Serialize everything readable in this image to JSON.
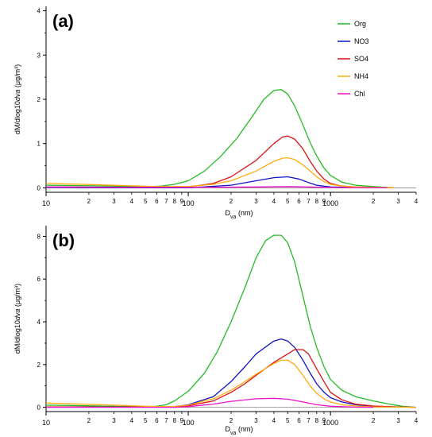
{
  "chart_data": [
    {
      "type": "line",
      "panel_label": "(a)",
      "xlabel": "D",
      "xlabel_sub": "va",
      "xlabel_unit": " (nm)",
      "ylabel_prefix": "dM/dlog10",
      "ylabel_var": "dva",
      "ylabel_unit": " (μg/m³)",
      "x_scale": "log",
      "xlim": [
        10,
        4000
      ],
      "ylim": [
        -0.1,
        4.1
      ],
      "y_ticks": [
        0,
        1,
        2,
        3,
        4
      ],
      "x_major_ticks": [
        10,
        100,
        1000
      ],
      "x_major_labels": [
        "10",
        "100",
        "1000"
      ],
      "x_minor_ticks": [
        20,
        30,
        40,
        50,
        60,
        70,
        80,
        90,
        200,
        300,
        400,
        500,
        600,
        700,
        800,
        900,
        2000,
        3000,
        4000
      ],
      "x_minor_labels": [
        "2",
        "3",
        "4",
        "5",
        "6",
        "7",
        "8",
        "9",
        "2",
        "3",
        "4",
        "5",
        "6",
        "7",
        "8",
        "9",
        "2",
        "3",
        "4"
      ],
      "legend_position": "top-right",
      "series": [
        {
          "name": "Org",
          "color": "#22bb22",
          "x": [
            10,
            30,
            50,
            65,
            80,
            100,
            130,
            170,
            220,
            280,
            340,
            400,
            450,
            500,
            560,
            640,
            720,
            800,
            900,
            1000,
            1200,
            1500,
            1800,
            2200,
            2800
          ],
          "y": [
            0.06,
            0.04,
            0.02,
            0.04,
            0.08,
            0.16,
            0.38,
            0.72,
            1.12,
            1.6,
            2.0,
            2.2,
            2.22,
            2.12,
            1.85,
            1.42,
            1.02,
            0.72,
            0.45,
            0.28,
            0.13,
            0.06,
            0.04,
            0.02,
            0.0
          ]
        },
        {
          "name": "NO3",
          "color": "#1111cc",
          "x": [
            10,
            50,
            100,
            200,
            300,
            400,
            500,
            600,
            700,
            800,
            1000,
            1500,
            2500
          ],
          "y": [
            0.01,
            0.0,
            0.0,
            0.06,
            0.16,
            0.23,
            0.25,
            0.2,
            0.12,
            0.06,
            0.02,
            0.01,
            0.0
          ]
        },
        {
          "name": "SO4",
          "color": "#dd1111",
          "x": [
            10,
            50,
            100,
            150,
            200,
            300,
            400,
            460,
            500,
            560,
            640,
            720,
            800,
            900,
            1000,
            1200,
            1500,
            2000,
            2800
          ],
          "y": [
            0.02,
            0.01,
            0.02,
            0.1,
            0.25,
            0.62,
            1.0,
            1.15,
            1.17,
            1.1,
            0.88,
            0.6,
            0.38,
            0.2,
            0.1,
            0.04,
            0.02,
            0.01,
            0.0
          ]
        },
        {
          "name": "NH4",
          "color": "#ffaa11",
          "x": [
            10,
            30,
            60,
            100,
            150,
            200,
            300,
            400,
            460,
            500,
            560,
            640,
            720,
            800,
            900,
            1000,
            1200,
            1500,
            2000,
            2800
          ],
          "y": [
            0.1,
            0.06,
            0.03,
            0.03,
            0.08,
            0.16,
            0.38,
            0.6,
            0.67,
            0.68,
            0.64,
            0.52,
            0.38,
            0.25,
            0.14,
            0.08,
            0.04,
            0.02,
            0.01,
            0.0
          ]
        },
        {
          "name": "Chl",
          "color": "#ee11cc",
          "x": [
            10,
            100,
            300,
            500,
            700,
            1000,
            1500,
            2500
          ],
          "y": [
            0.02,
            0.01,
            0.02,
            0.03,
            0.02,
            0.01,
            0.0,
            0.0
          ]
        }
      ]
    },
    {
      "type": "line",
      "panel_label": "(b)",
      "xlabel": "D",
      "xlabel_sub": "va",
      "xlabel_unit": " (nm)",
      "ylabel_prefix": "dM/dlog10",
      "ylabel_var": "dva",
      "ylabel_unit": " (μg/m³)",
      "x_scale": "log",
      "xlim": [
        10,
        4000
      ],
      "ylim": [
        -0.2,
        8.5
      ],
      "y_ticks": [
        0,
        2,
        4,
        6,
        8
      ],
      "x_major_ticks": [
        10,
        100,
        1000
      ],
      "x_major_labels": [
        "10",
        "100",
        "1000"
      ],
      "x_minor_ticks": [
        20,
        30,
        40,
        50,
        60,
        70,
        80,
        90,
        200,
        300,
        400,
        500,
        600,
        700,
        800,
        900,
        2000,
        3000,
        4000
      ],
      "x_minor_labels": [
        "2",
        "3",
        "4",
        "5",
        "6",
        "7",
        "8",
        "9",
        "2",
        "3",
        "4",
        "5",
        "6",
        "7",
        "8",
        "9",
        "2",
        "3",
        "4"
      ],
      "series": [
        {
          "name": "Org",
          "color": "#22bb22",
          "x": [
            10,
            30,
            50,
            60,
            70,
            80,
            100,
            130,
            160,
            200,
            250,
            300,
            350,
            400,
            450,
            500,
            560,
            640,
            720,
            800,
            900,
            1000,
            1200,
            1500,
            2000,
            2600,
            3200,
            4000
          ],
          "y": [
            0.1,
            0.05,
            0.02,
            0.05,
            0.12,
            0.3,
            0.75,
            1.6,
            2.6,
            4.0,
            5.6,
            7.0,
            7.8,
            8.05,
            8.05,
            7.7,
            6.8,
            5.2,
            3.8,
            2.8,
            1.9,
            1.3,
            0.8,
            0.5,
            0.3,
            0.15,
            0.05,
            0.0
          ]
        },
        {
          "name": "NO3",
          "color": "#1111cc",
          "x": [
            10,
            50,
            80,
            100,
            150,
            200,
            250,
            300,
            400,
            450,
            500,
            560,
            640,
            720,
            800,
            900,
            1000,
            1200,
            1500,
            2000,
            3000,
            4000
          ],
          "y": [
            0.02,
            0.01,
            0.03,
            0.12,
            0.5,
            1.2,
            1.9,
            2.5,
            3.1,
            3.2,
            3.1,
            2.8,
            2.2,
            1.6,
            1.1,
            0.7,
            0.45,
            0.25,
            0.12,
            0.05,
            0.02,
            0.0
          ]
        },
        {
          "name": "SO4",
          "color": "#dd1111",
          "x": [
            10,
            50,
            80,
            100,
            150,
            200,
            250,
            300,
            400,
            500,
            560,
            640,
            700,
            800,
            900,
            1000,
            1200,
            1500,
            2000,
            3000,
            4000
          ],
          "y": [
            0.02,
            0.01,
            0.02,
            0.07,
            0.3,
            0.7,
            1.1,
            1.5,
            2.1,
            2.5,
            2.7,
            2.7,
            2.5,
            1.8,
            1.2,
            0.7,
            0.35,
            0.15,
            0.06,
            0.02,
            0.0
          ]
        },
        {
          "name": "NH4",
          "color": "#ffaa11",
          "x": [
            10,
            30,
            60,
            80,
            100,
            150,
            200,
            250,
            300,
            400,
            450,
            500,
            560,
            640,
            720,
            800,
            900,
            1000,
            1200,
            1500,
            2000,
            3000,
            4000
          ],
          "y": [
            0.2,
            0.1,
            0.03,
            0.04,
            0.1,
            0.4,
            0.8,
            1.2,
            1.55,
            2.05,
            2.2,
            2.2,
            2.0,
            1.5,
            1.0,
            0.65,
            0.4,
            0.25,
            0.12,
            0.06,
            0.02,
            0.01,
            0.0
          ]
        },
        {
          "name": "Chl",
          "color": "#ee11cc",
          "x": [
            10,
            80,
            100,
            150,
            200,
            300,
            400,
            500,
            640,
            800,
            1000,
            1500,
            2000
          ],
          "y": [
            0.0,
            0.0,
            0.03,
            0.15,
            0.28,
            0.4,
            0.42,
            0.38,
            0.25,
            0.12,
            0.05,
            0.01,
            0.0
          ]
        }
      ]
    }
  ]
}
